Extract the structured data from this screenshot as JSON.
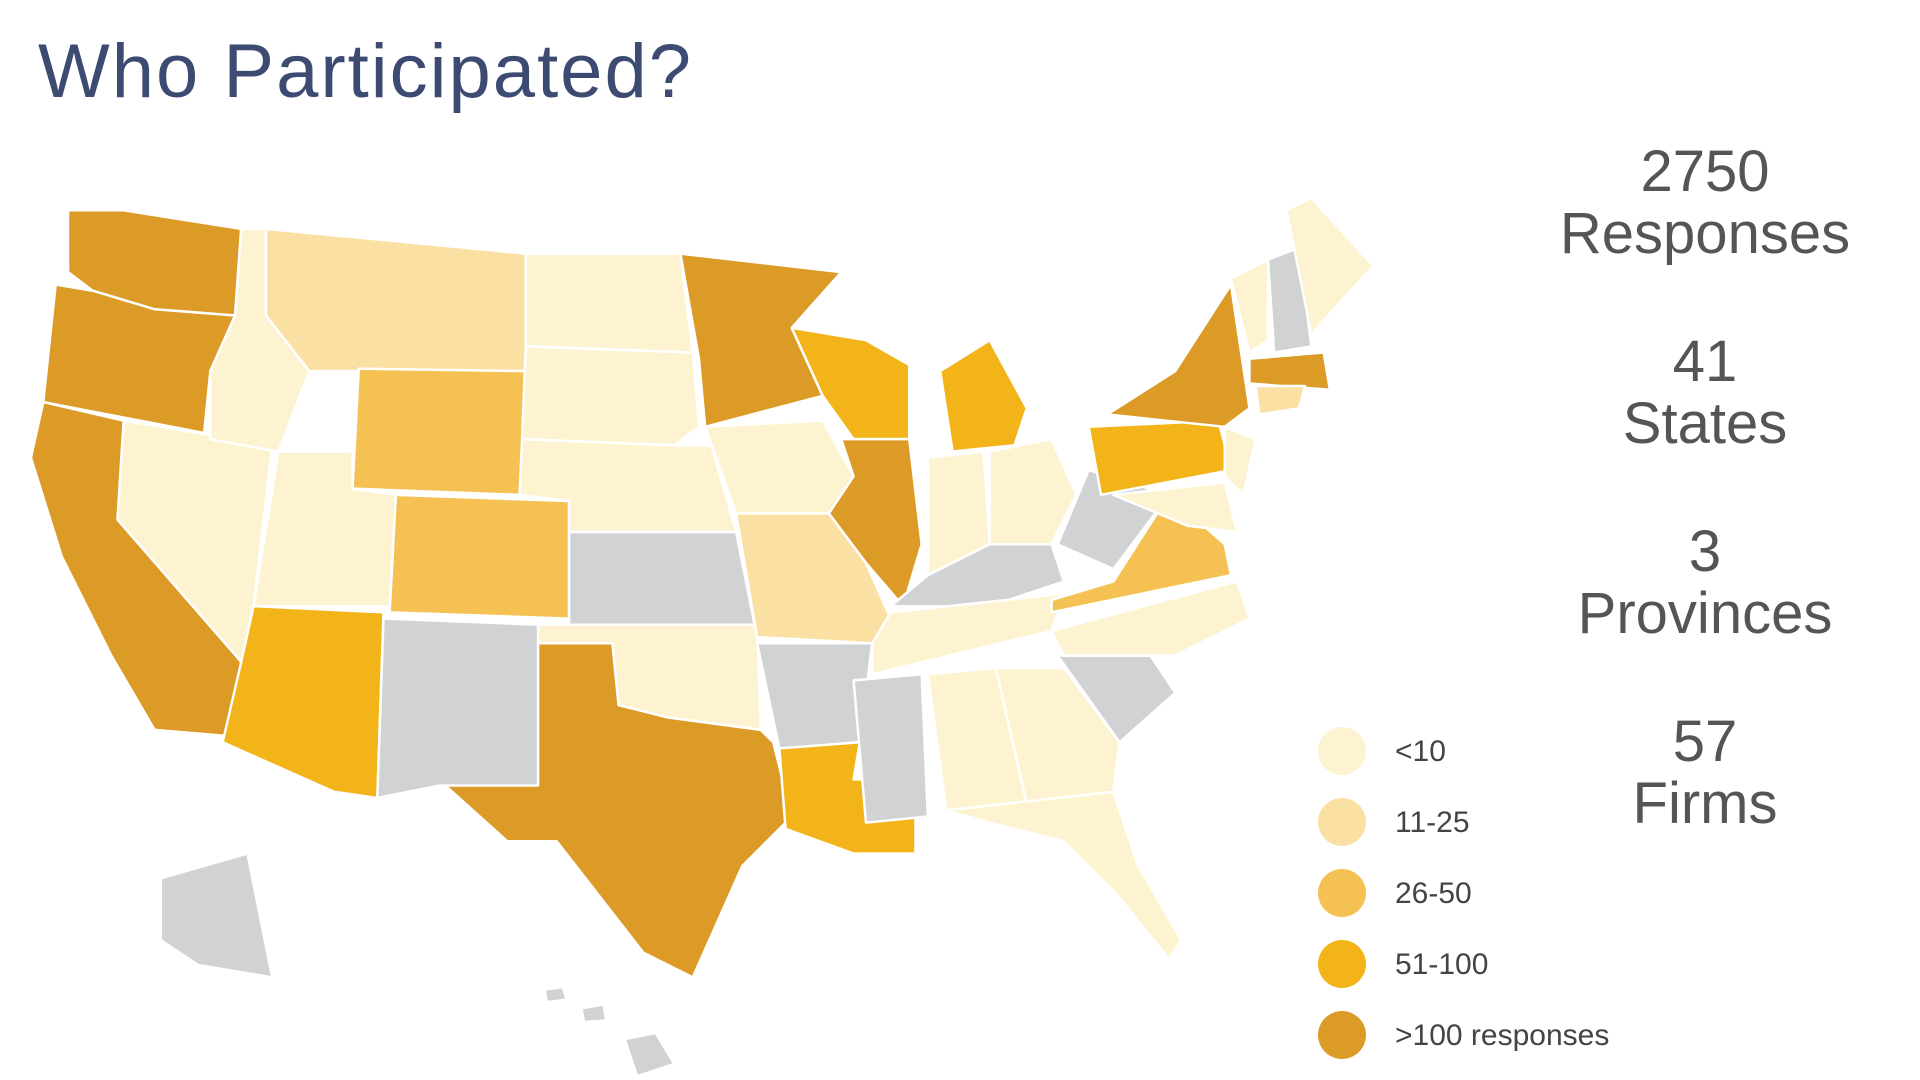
{
  "header": {
    "title": "Who Participated?"
  },
  "stats": [
    {
      "value": 2750,
      "label": "Responses"
    },
    {
      "value": 41,
      "label": "States"
    },
    {
      "value": 3,
      "label": "Provinces"
    },
    {
      "value": 57,
      "label": "Firms"
    }
  ],
  "legend": {
    "items": [
      {
        "label": "<10",
        "color": "#fef3d0"
      },
      {
        "label": "11-25",
        "color": "#fbe0a3"
      },
      {
        "label": "26-50",
        "color": "#f5c153"
      },
      {
        "label": "51-100",
        "color": "#f2b418"
      },
      {
        "label": ">100 responses",
        "color": "#dc9a26"
      }
    ]
  }
}
